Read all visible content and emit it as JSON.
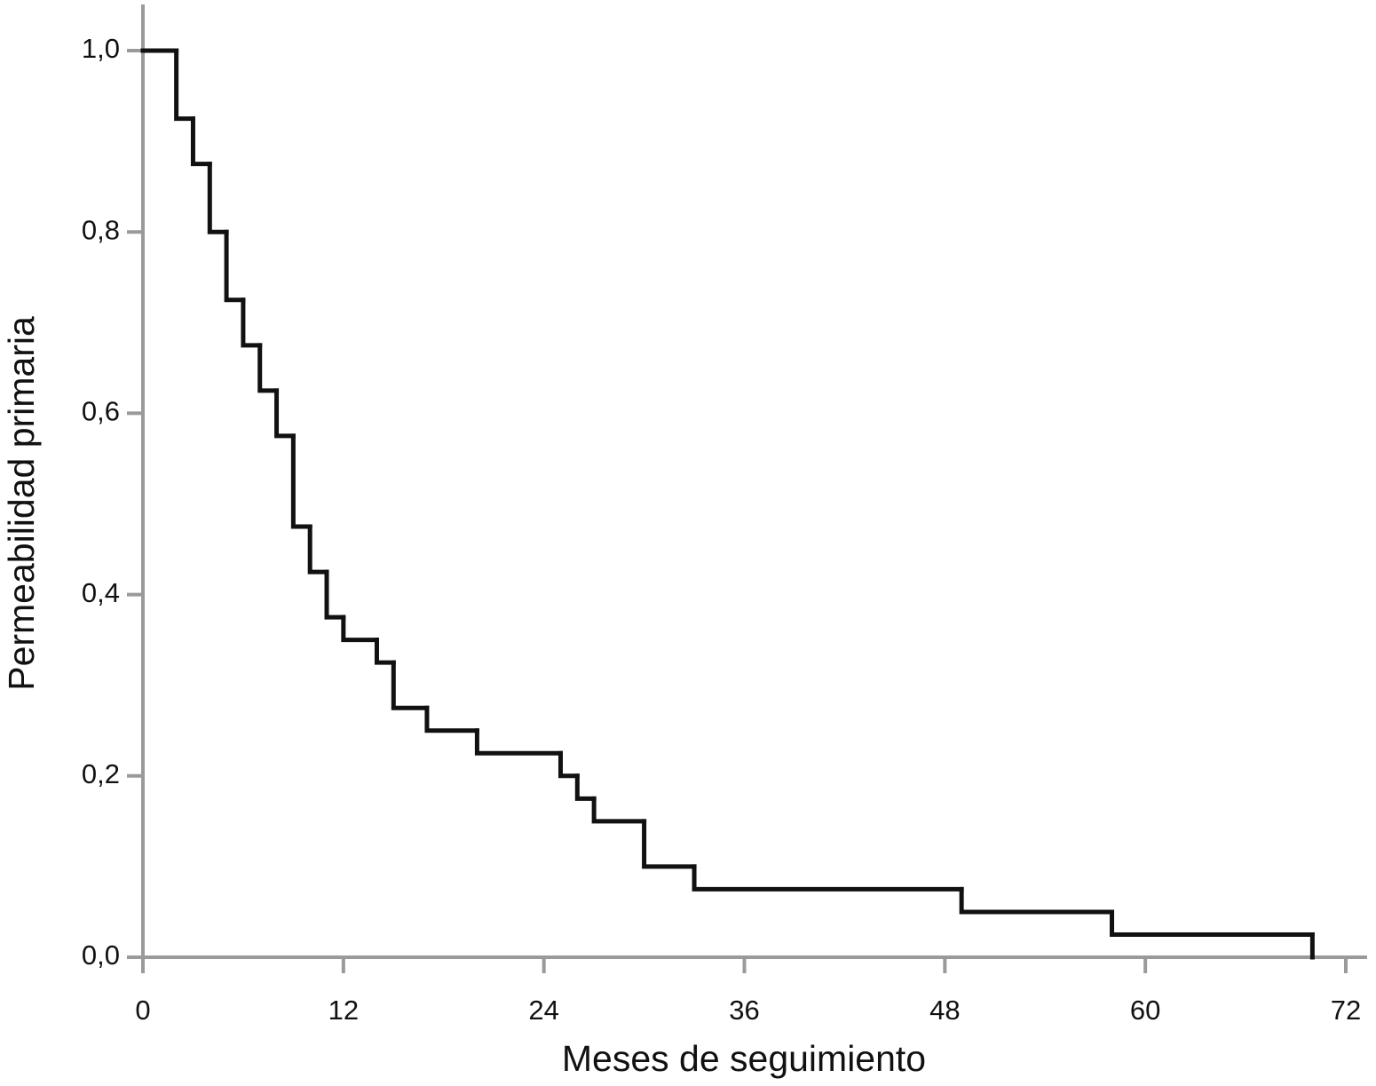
{
  "chart_data": {
    "type": "step",
    "x_label": "Meses de seguimiento",
    "y_label": "Permeabilidad primaria",
    "x": [
      0,
      2,
      3,
      4,
      5,
      6,
      7,
      8,
      9,
      10,
      11,
      12,
      14,
      15,
      17,
      20,
      25,
      26,
      27,
      30,
      33,
      49,
      58,
      70
    ],
    "values": [
      1.0,
      0.925,
      0.875,
      0.8,
      0.725,
      0.675,
      0.625,
      0.575,
      0.475,
      0.425,
      0.375,
      0.35,
      0.325,
      0.275,
      0.25,
      0.225,
      0.2,
      0.175,
      0.15,
      0.1,
      0.075,
      0.05,
      0.025,
      0.0
    ],
    "color": "#111111",
    "xlim": [
      0,
      72
    ],
    "xticks": [
      0,
      12,
      24,
      36,
      48,
      60,
      72
    ],
    "ylim": [
      0,
      1
    ],
    "yticks": [
      {
        "value": 0,
        "label": "0,0"
      },
      {
        "value": 0.2,
        "label": "0,2"
      },
      {
        "value": 0.4,
        "label": "0,4"
      },
      {
        "value": 0.6,
        "label": "0,6"
      },
      {
        "value": 0.8,
        "label": "0,8"
      },
      {
        "value": 1,
        "label": "1,0"
      }
    ]
  }
}
